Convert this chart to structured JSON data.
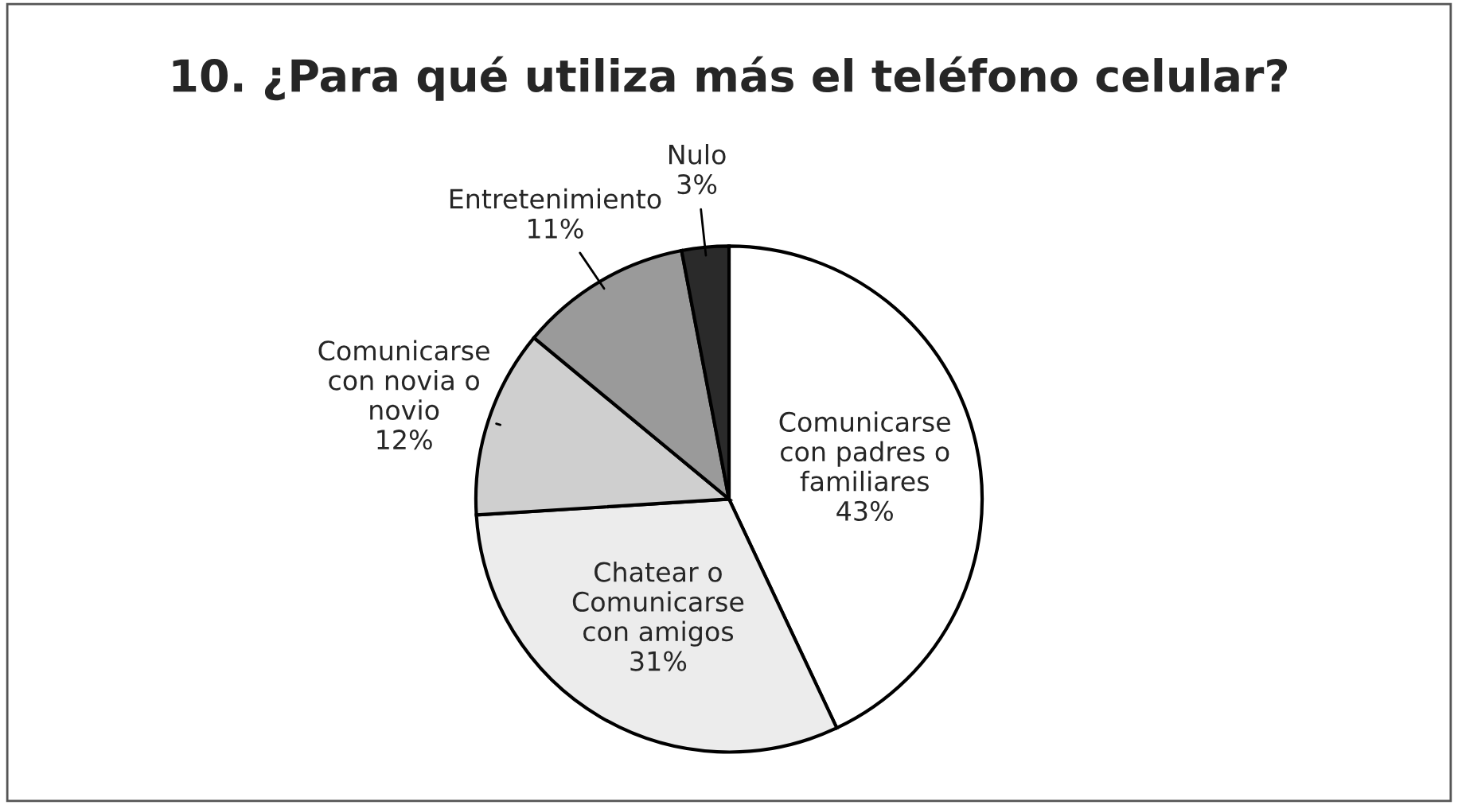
{
  "chart_data": {
    "type": "pie",
    "title": "10. ¿Para qué utiliza más el teléfono celular?",
    "categories": [
      "Comunicarse\ncon padres o\nfamiliares",
      "Chatear o\nComunicarse\ncon amigos",
      "Comunicarse\ncon novia o\nnovio",
      "Entretenimiento",
      "Nulo"
    ],
    "values": [
      43,
      31,
      12,
      11,
      3
    ],
    "value_labels": [
      "43%",
      "31%",
      "12%",
      "11%",
      "3%"
    ],
    "colors": [
      "#ffffff",
      "#ececec",
      "#cfcfcf",
      "#9a9a9a",
      "#2a2a2a"
    ]
  }
}
